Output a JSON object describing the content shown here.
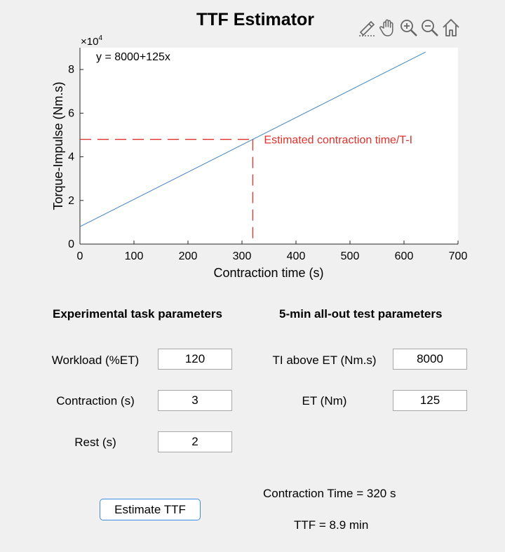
{
  "app": {
    "title": "TTF Estimator"
  },
  "toolbar": {
    "icons": [
      "brush-icon",
      "pan-icon",
      "zoom-in-icon",
      "zoom-out-icon",
      "home-icon"
    ]
  },
  "chart_data": {
    "type": "line",
    "xlabel": "Contraction time (s)",
    "ylabel": "Torque-Impulse (Nm.s)",
    "xlim": [
      0,
      700
    ],
    "ylim": [
      0,
      90000
    ],
    "xticks": [
      0,
      100,
      200,
      300,
      400,
      500,
      600,
      700
    ],
    "yticks": [
      0,
      20000,
      40000,
      60000,
      80000
    ],
    "ytick_labels": [
      "0",
      "2",
      "4",
      "6",
      "8"
    ],
    "y_exponent_label": "×10",
    "y_exponent_power": "4",
    "equation": "y = 8000+125x",
    "series": [
      {
        "x": [
          0,
          640
        ],
        "y": [
          8000,
          88000
        ],
        "color": "#3f86c8"
      }
    ],
    "estimate": {
      "x": 320,
      "y": 48000,
      "label": "Estimated contraction time/T-I",
      "color": "#e0312a"
    },
    "grid": false
  },
  "experimental": {
    "heading": "Experimental task parameters",
    "workload_label": "Workload (%ET)",
    "workload_value": "120",
    "contraction_label": "Contraction (s)",
    "contraction_value": "3",
    "rest_label": "Rest (s)",
    "rest_value": "2"
  },
  "allout": {
    "heading": "5-min all-out test parameters",
    "ti_label": "TI above ET (Nm.s)",
    "ti_value": "8000",
    "et_label": "ET (Nm)",
    "et_value": "125"
  },
  "actions": {
    "estimate_label": "Estimate TTF"
  },
  "results": {
    "contraction_time": "Contraction Time = 320 s",
    "ttf": "TTF = 8.9 min"
  }
}
